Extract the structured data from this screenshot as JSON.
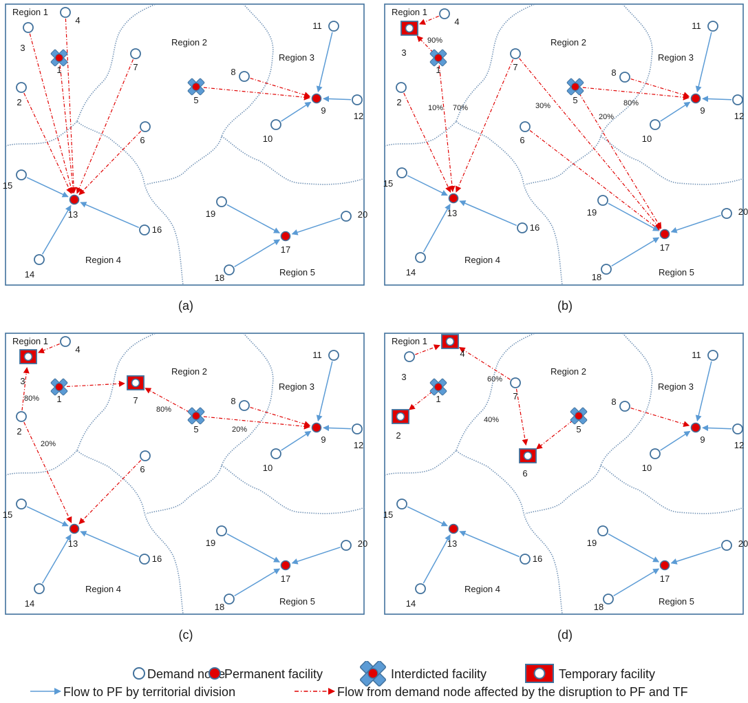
{
  "panels": [
    {
      "caption": "(a)",
      "regions": [
        "Region 1",
        "Region 2",
        "Region 3",
        "Region 4",
        "Region 5"
      ],
      "nodes": [
        {
          "id": "1",
          "type": "interdicted"
        },
        {
          "id": "2",
          "type": "demand"
        },
        {
          "id": "3",
          "type": "demand"
        },
        {
          "id": "4",
          "type": "demand"
        },
        {
          "id": "5",
          "type": "interdicted"
        },
        {
          "id": "6",
          "type": "demand"
        },
        {
          "id": "7",
          "type": "demand"
        },
        {
          "id": "8",
          "type": "demand"
        },
        {
          "id": "9",
          "type": "permanent"
        },
        {
          "id": "10",
          "type": "demand"
        },
        {
          "id": "11",
          "type": "demand"
        },
        {
          "id": "12",
          "type": "demand"
        },
        {
          "id": "13",
          "type": "permanent"
        },
        {
          "id": "14",
          "type": "demand"
        },
        {
          "id": "15",
          "type": "demand"
        },
        {
          "id": "16",
          "type": "demand"
        },
        {
          "id": "17",
          "type": "permanent"
        },
        {
          "id": "18",
          "type": "demand"
        },
        {
          "id": "19",
          "type": "demand"
        },
        {
          "id": "20",
          "type": "demand"
        }
      ],
      "flows": [
        {
          "from": "1",
          "to": "13",
          "kind": "disrupted"
        },
        {
          "from": "2",
          "to": "13",
          "kind": "disrupted"
        },
        {
          "from": "3",
          "to": "13",
          "kind": "disrupted"
        },
        {
          "from": "4",
          "to": "13",
          "kind": "disrupted"
        },
        {
          "from": "6",
          "to": "13",
          "kind": "disrupted"
        },
        {
          "from": "7",
          "to": "13",
          "kind": "disrupted"
        },
        {
          "from": "5",
          "to": "9",
          "kind": "disrupted"
        },
        {
          "from": "8",
          "to": "9",
          "kind": "disrupted"
        },
        {
          "from": "10",
          "to": "9",
          "kind": "territorial"
        },
        {
          "from": "11",
          "to": "9",
          "kind": "territorial"
        },
        {
          "from": "12",
          "to": "9",
          "kind": "territorial"
        },
        {
          "from": "14",
          "to": "13",
          "kind": "territorial"
        },
        {
          "from": "15",
          "to": "13",
          "kind": "territorial"
        },
        {
          "from": "16",
          "to": "13",
          "kind": "territorial"
        },
        {
          "from": "18",
          "to": "17",
          "kind": "territorial"
        },
        {
          "from": "19",
          "to": "17",
          "kind": "territorial"
        },
        {
          "from": "20",
          "to": "17",
          "kind": "territorial"
        }
      ],
      "percent_labels": []
    },
    {
      "caption": "(b)",
      "regions": [
        "Region 1",
        "Region 2",
        "Region 3",
        "Region 4",
        "Region 5"
      ],
      "nodes": [
        {
          "id": "1",
          "type": "interdicted"
        },
        {
          "id": "2",
          "type": "demand"
        },
        {
          "id": "3",
          "type": "temporary"
        },
        {
          "id": "4",
          "type": "demand"
        },
        {
          "id": "5",
          "type": "interdicted"
        },
        {
          "id": "6",
          "type": "demand"
        },
        {
          "id": "7",
          "type": "demand"
        },
        {
          "id": "8",
          "type": "demand"
        },
        {
          "id": "9",
          "type": "permanent"
        },
        {
          "id": "10",
          "type": "demand"
        },
        {
          "id": "11",
          "type": "demand"
        },
        {
          "id": "12",
          "type": "demand"
        },
        {
          "id": "13",
          "type": "permanent"
        },
        {
          "id": "14",
          "type": "demand"
        },
        {
          "id": "15",
          "type": "demand"
        },
        {
          "id": "16",
          "type": "demand"
        },
        {
          "id": "17",
          "type": "permanent"
        },
        {
          "id": "18",
          "type": "demand"
        },
        {
          "id": "19",
          "type": "demand"
        },
        {
          "id": "20",
          "type": "demand"
        }
      ],
      "flows": [
        {
          "from": "4",
          "to": "3",
          "kind": "disrupted"
        },
        {
          "from": "1",
          "to": "3",
          "kind": "disrupted"
        },
        {
          "from": "1",
          "to": "13",
          "kind": "disrupted"
        },
        {
          "from": "2",
          "to": "13",
          "kind": "disrupted"
        },
        {
          "from": "7",
          "to": "13",
          "kind": "disrupted"
        },
        {
          "from": "7",
          "to": "17",
          "kind": "disrupted"
        },
        {
          "from": "5",
          "to": "9",
          "kind": "disrupted"
        },
        {
          "from": "5",
          "to": "17",
          "kind": "disrupted"
        },
        {
          "from": "6",
          "to": "17",
          "kind": "disrupted"
        },
        {
          "from": "8",
          "to": "9",
          "kind": "disrupted"
        },
        {
          "from": "10",
          "to": "9",
          "kind": "territorial"
        },
        {
          "from": "11",
          "to": "9",
          "kind": "territorial"
        },
        {
          "from": "12",
          "to": "9",
          "kind": "territorial"
        },
        {
          "from": "14",
          "to": "13",
          "kind": "territorial"
        },
        {
          "from": "15",
          "to": "13",
          "kind": "territorial"
        },
        {
          "from": "16",
          "to": "13",
          "kind": "territorial"
        },
        {
          "from": "18",
          "to": "17",
          "kind": "territorial"
        },
        {
          "from": "19",
          "to": "17",
          "kind": "territorial"
        },
        {
          "from": "20",
          "to": "17",
          "kind": "territorial"
        }
      ],
      "percent_labels": [
        "90%",
        "10%",
        "70%",
        "30%",
        "80%",
        "20%"
      ]
    },
    {
      "caption": "(c)",
      "regions": [
        "Region 1",
        "Region 2",
        "Region 3",
        "Region 4",
        "Region 5"
      ],
      "nodes": [
        {
          "id": "1",
          "type": "interdicted"
        },
        {
          "id": "2",
          "type": "demand"
        },
        {
          "id": "3",
          "type": "temporary"
        },
        {
          "id": "4",
          "type": "demand"
        },
        {
          "id": "5",
          "type": "interdicted"
        },
        {
          "id": "6",
          "type": "demand"
        },
        {
          "id": "7",
          "type": "temporary"
        },
        {
          "id": "8",
          "type": "demand"
        },
        {
          "id": "9",
          "type": "permanent"
        },
        {
          "id": "10",
          "type": "demand"
        },
        {
          "id": "11",
          "type": "demand"
        },
        {
          "id": "12",
          "type": "demand"
        },
        {
          "id": "13",
          "type": "permanent"
        },
        {
          "id": "14",
          "type": "demand"
        },
        {
          "id": "15",
          "type": "demand"
        },
        {
          "id": "16",
          "type": "demand"
        },
        {
          "id": "17",
          "type": "permanent"
        },
        {
          "id": "18",
          "type": "demand"
        },
        {
          "id": "19",
          "type": "demand"
        },
        {
          "id": "20",
          "type": "demand"
        }
      ],
      "flows": [
        {
          "from": "4",
          "to": "3",
          "kind": "disrupted"
        },
        {
          "from": "2",
          "to": "3",
          "kind": "disrupted"
        },
        {
          "from": "2",
          "to": "13",
          "kind": "disrupted"
        },
        {
          "from": "1",
          "to": "7",
          "kind": "disrupted"
        },
        {
          "from": "5",
          "to": "7",
          "kind": "disrupted"
        },
        {
          "from": "5",
          "to": "9",
          "kind": "disrupted"
        },
        {
          "from": "8",
          "to": "9",
          "kind": "disrupted"
        },
        {
          "from": "6",
          "to": "13",
          "kind": "disrupted"
        },
        {
          "from": "10",
          "to": "9",
          "kind": "territorial"
        },
        {
          "from": "11",
          "to": "9",
          "kind": "territorial"
        },
        {
          "from": "12",
          "to": "9",
          "kind": "territorial"
        },
        {
          "from": "14",
          "to": "13",
          "kind": "territorial"
        },
        {
          "from": "15",
          "to": "13",
          "kind": "territorial"
        },
        {
          "from": "16",
          "to": "13",
          "kind": "territorial"
        },
        {
          "from": "18",
          "to": "17",
          "kind": "territorial"
        },
        {
          "from": "19",
          "to": "17",
          "kind": "territorial"
        },
        {
          "from": "20",
          "to": "17",
          "kind": "territorial"
        }
      ],
      "percent_labels": [
        "80%",
        "20%",
        "80%",
        "20%"
      ]
    },
    {
      "caption": "(d)",
      "regions": [
        "Region 1",
        "Region 2",
        "Region 3",
        "Region 4",
        "Region 5"
      ],
      "nodes": [
        {
          "id": "1",
          "type": "interdicted"
        },
        {
          "id": "2",
          "type": "temporary"
        },
        {
          "id": "3",
          "type": "demand"
        },
        {
          "id": "4",
          "type": "temporary"
        },
        {
          "id": "5",
          "type": "interdicted"
        },
        {
          "id": "6",
          "type": "temporary"
        },
        {
          "id": "7",
          "type": "demand"
        },
        {
          "id": "8",
          "type": "demand"
        },
        {
          "id": "9",
          "type": "permanent"
        },
        {
          "id": "10",
          "type": "demand"
        },
        {
          "id": "11",
          "type": "demand"
        },
        {
          "id": "12",
          "type": "demand"
        },
        {
          "id": "13",
          "type": "permanent"
        },
        {
          "id": "14",
          "type": "demand"
        },
        {
          "id": "15",
          "type": "demand"
        },
        {
          "id": "16",
          "type": "demand"
        },
        {
          "id": "17",
          "type": "permanent"
        },
        {
          "id": "18",
          "type": "demand"
        },
        {
          "id": "19",
          "type": "demand"
        },
        {
          "id": "20",
          "type": "demand"
        }
      ],
      "flows": [
        {
          "from": "3",
          "to": "4",
          "kind": "disrupted"
        },
        {
          "from": "7",
          "to": "4",
          "kind": "disrupted"
        },
        {
          "from": "7",
          "to": "6",
          "kind": "disrupted"
        },
        {
          "from": "1",
          "to": "2",
          "kind": "disrupted"
        },
        {
          "from": "5",
          "to": "6",
          "kind": "disrupted"
        },
        {
          "from": "8",
          "to": "9",
          "kind": "disrupted"
        },
        {
          "from": "10",
          "to": "9",
          "kind": "territorial"
        },
        {
          "from": "11",
          "to": "9",
          "kind": "territorial"
        },
        {
          "from": "12",
          "to": "9",
          "kind": "territorial"
        },
        {
          "from": "14",
          "to": "13",
          "kind": "territorial"
        },
        {
          "from": "15",
          "to": "13",
          "kind": "territorial"
        },
        {
          "from": "16",
          "to": "13",
          "kind": "territorial"
        },
        {
          "from": "18",
          "to": "17",
          "kind": "territorial"
        },
        {
          "from": "19",
          "to": "17",
          "kind": "territorial"
        },
        {
          "from": "20",
          "to": "17",
          "kind": "territorial"
        }
      ],
      "percent_labels": [
        "60%",
        "40%"
      ]
    }
  ],
  "legend": {
    "demand_node": "Demand node",
    "permanent_facility": "Permanent facility",
    "interdicted_facility": "Interdicted facility",
    "temporary_facility": "Temporary facility",
    "territorial_flow": "Flow to PF by territorial division",
    "disrupted_flow": "Flow from demand node affected by the disruption to PF and TF"
  },
  "colors": {
    "blue": "#41719c",
    "light_blue": "#5b9bd5",
    "red": "#e00000",
    "border": "#41719c"
  }
}
